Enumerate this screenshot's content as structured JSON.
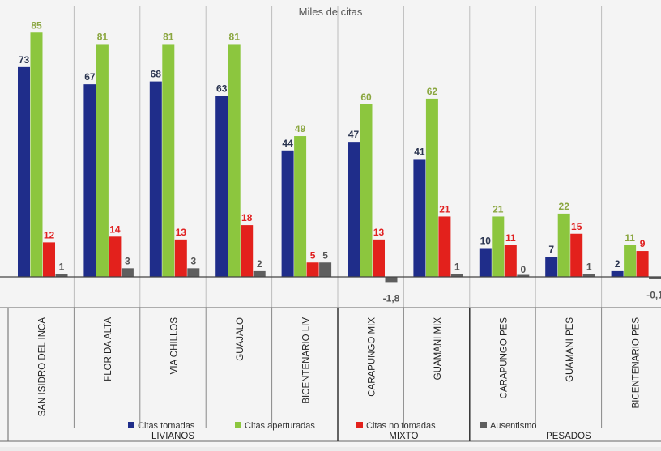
{
  "chart_data": {
    "type": "bar",
    "subtitle": "Miles de citas",
    "categories": [
      "SAN ISIDRO DEL INCA",
      "FLORIDA ALTA",
      "VIA CHILLOS",
      "GUAJALO",
      "BICENTENARIO LIV",
      "CARAPUNGO MIX",
      "GUAMANI MIX",
      "CARAPUNGO PES",
      "GUAMANI PES",
      "BICENTENARIO PES"
    ],
    "groups": [
      {
        "label": "LIVIANOS",
        "from": 0,
        "to": 4
      },
      {
        "label": "MIXTO",
        "from": 5,
        "to": 6
      },
      {
        "label": "PESADOS",
        "from": 7,
        "to": 9
      }
    ],
    "series": [
      {
        "name": "Citas tomadas",
        "color": "#1f2d8a",
        "values": [
          73,
          67,
          68,
          63,
          44,
          47,
          41,
          10,
          7,
          2
        ],
        "labels": [
          "73",
          "67",
          "68",
          "63",
          "44",
          "47",
          "41",
          "10",
          "7",
          "2"
        ]
      },
      {
        "name": "Citas aperturadas",
        "color": "#8cc63e",
        "values": [
          85,
          81,
          81,
          81,
          49,
          60,
          62,
          21,
          22,
          11
        ],
        "labels": [
          "85",
          "81",
          "81",
          "81",
          "49",
          "60",
          "62",
          "21",
          "22",
          "11"
        ]
      },
      {
        "name": "Citas no tomadas",
        "color": "#e3211c",
        "values": [
          12,
          14,
          13,
          18,
          5,
          13,
          21,
          11,
          15,
          9
        ],
        "labels": [
          "12",
          "14",
          "13",
          "18",
          "5",
          "13",
          "21",
          "11",
          "15",
          "9"
        ]
      },
      {
        "name": "Ausentismo",
        "color": "#5e5e5e",
        "values": [
          1,
          3,
          3,
          2,
          5,
          -1.8,
          1,
          0,
          1,
          -0.1
        ],
        "labels": [
          "1",
          "3",
          "3",
          "2",
          "5",
          "-1,8",
          "1",
          "0",
          "1",
          "-0,1"
        ]
      }
    ],
    "ylim": [
      -5,
      90
    ],
    "grid": false,
    "legend_position": "bottom"
  }
}
